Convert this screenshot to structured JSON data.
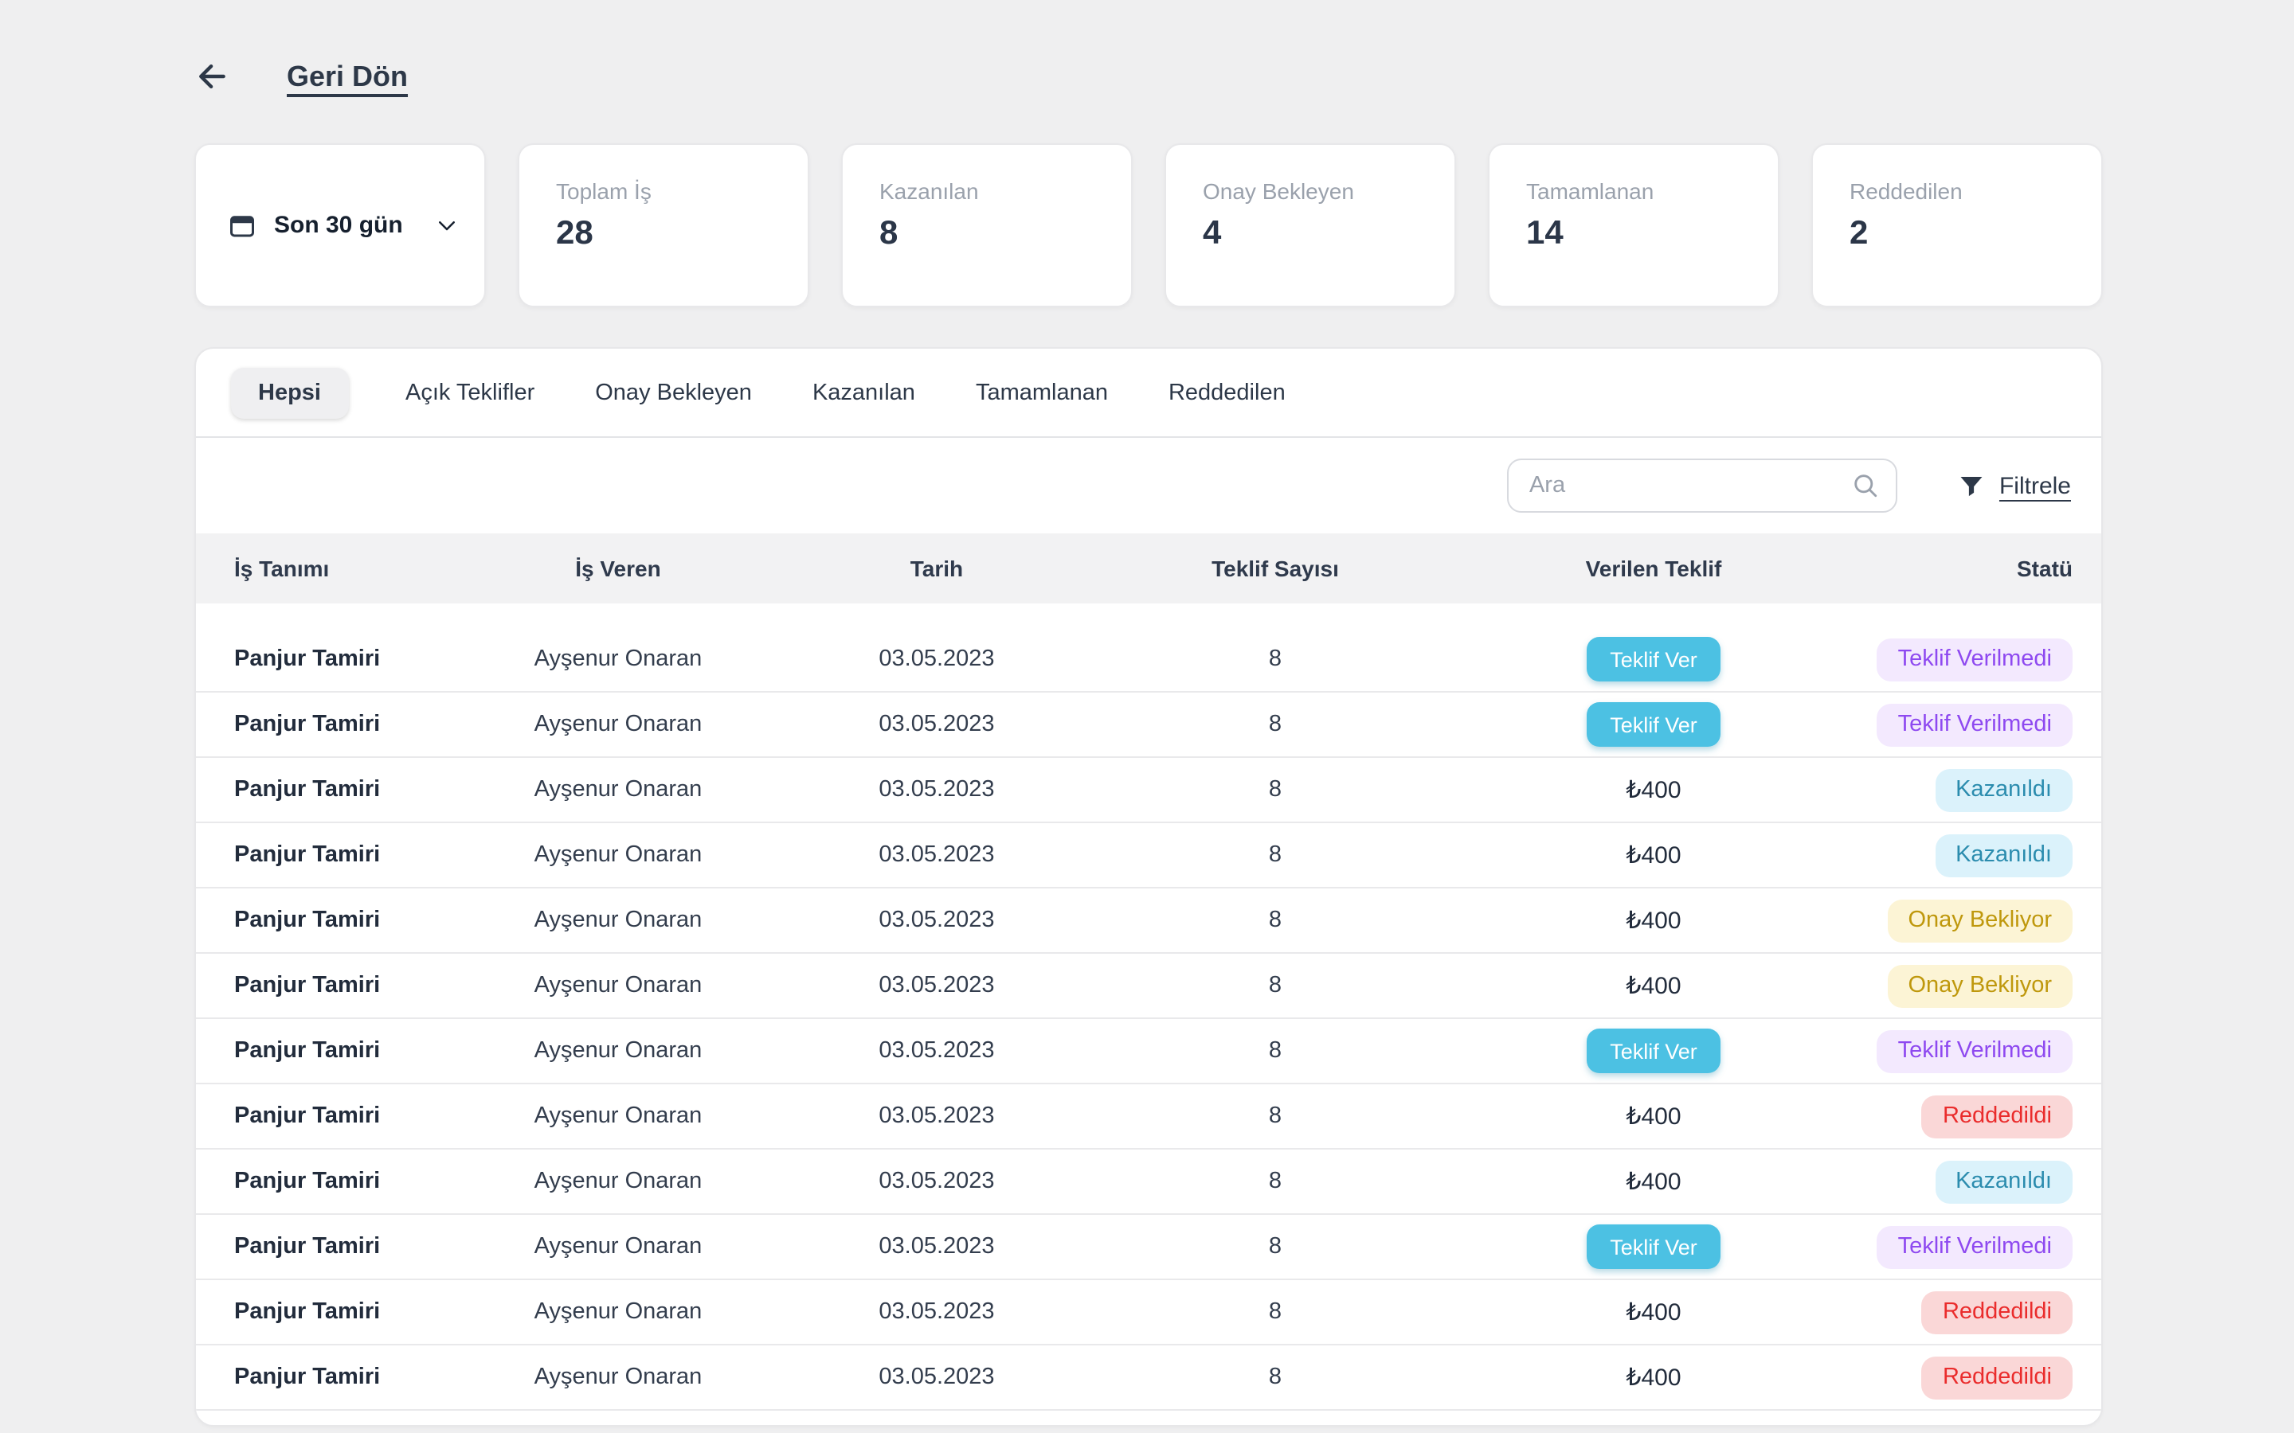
{
  "back": {
    "label": "Geri Dön"
  },
  "stats": {
    "date_filter": {
      "label": "Son 30 gün"
    },
    "cards": [
      {
        "label": "Toplam İş",
        "value": "28"
      },
      {
        "label": "Kazanılan",
        "value": "8"
      },
      {
        "label": "Onay Bekleyen",
        "value": "4"
      },
      {
        "label": "Tamamlanan",
        "value": "14"
      },
      {
        "label": "Reddedilen",
        "value": "2"
      }
    ]
  },
  "tabs": [
    {
      "label": "Hepsi",
      "active": true
    },
    {
      "label": "Açık Teklifler",
      "active": false
    },
    {
      "label": "Onay Bekleyen",
      "active": false
    },
    {
      "label": "Kazanılan",
      "active": false
    },
    {
      "label": "Tamamlanan",
      "active": false
    },
    {
      "label": "Reddedilen",
      "active": false
    }
  ],
  "toolbar": {
    "search_placeholder": "Ara",
    "filter_label": "Filtrele"
  },
  "table": {
    "columns": [
      "İş Tanımı",
      "İş Veren",
      "Tarih",
      "Teklif Sayısı",
      "Verilen Teklif",
      "Statü"
    ],
    "offer_button_label": "Teklif Ver",
    "rows": [
      {
        "job": "Panjur Tamiri",
        "employer": "Ayşenur Onaran",
        "date": "03.05.2023",
        "offer_count": "8",
        "offer_type": "button",
        "status": {
          "label": "Teklif Verilmedi",
          "variant": "purple"
        }
      },
      {
        "job": "Panjur Tamiri",
        "employer": "Ayşenur Onaran",
        "date": "03.05.2023",
        "offer_count": "8",
        "offer_type": "button",
        "status": {
          "label": "Teklif Verilmedi",
          "variant": "purple"
        }
      },
      {
        "job": "Panjur Tamiri",
        "employer": "Ayşenur Onaran",
        "date": "03.05.2023",
        "offer_count": "8",
        "offer_type": "amount",
        "offer_amount": "₺400",
        "status": {
          "label": "Kazanıldı",
          "variant": "cyan"
        }
      },
      {
        "job": "Panjur Tamiri",
        "employer": "Ayşenur Onaran",
        "date": "03.05.2023",
        "offer_count": "8",
        "offer_type": "amount",
        "offer_amount": "₺400",
        "status": {
          "label": "Kazanıldı",
          "variant": "cyan"
        }
      },
      {
        "job": "Panjur Tamiri",
        "employer": "Ayşenur Onaran",
        "date": "03.05.2023",
        "offer_count": "8",
        "offer_type": "amount",
        "offer_amount": "₺400",
        "status": {
          "label": "Onay Bekliyor",
          "variant": "yellow"
        }
      },
      {
        "job": "Panjur Tamiri",
        "employer": "Ayşenur Onaran",
        "date": "03.05.2023",
        "offer_count": "8",
        "offer_type": "amount",
        "offer_amount": "₺400",
        "status": {
          "label": "Onay Bekliyor",
          "variant": "yellow"
        }
      },
      {
        "job": "Panjur Tamiri",
        "employer": "Ayşenur Onaran",
        "date": "03.05.2023",
        "offer_count": "8",
        "offer_type": "button",
        "status": {
          "label": "Teklif Verilmedi",
          "variant": "purple"
        }
      },
      {
        "job": "Panjur Tamiri",
        "employer": "Ayşenur Onaran",
        "date": "03.05.2023",
        "offer_count": "8",
        "offer_type": "amount",
        "offer_amount": "₺400",
        "status": {
          "label": "Reddedildi",
          "variant": "red"
        }
      },
      {
        "job": "Panjur Tamiri",
        "employer": "Ayşenur Onaran",
        "date": "03.05.2023",
        "offer_count": "8",
        "offer_type": "amount",
        "offer_amount": "₺400",
        "status": {
          "label": "Kazanıldı",
          "variant": "cyan"
        }
      },
      {
        "job": "Panjur Tamiri",
        "employer": "Ayşenur Onaran",
        "date": "03.05.2023",
        "offer_count": "8",
        "offer_type": "button",
        "status": {
          "label": "Teklif Verilmedi",
          "variant": "purple"
        }
      },
      {
        "job": "Panjur Tamiri",
        "employer": "Ayşenur Onaran",
        "date": "03.05.2023",
        "offer_count": "8",
        "offer_type": "amount",
        "offer_amount": "₺400",
        "status": {
          "label": "Reddedildi",
          "variant": "red"
        }
      },
      {
        "job": "Panjur Tamiri",
        "employer": "Ayşenur Onaran",
        "date": "03.05.2023",
        "offer_count": "8",
        "offer_type": "amount",
        "offer_amount": "₺400",
        "status": {
          "label": "Reddedildi",
          "variant": "red"
        }
      }
    ]
  },
  "colors": {
    "accent_button": "#4cc1e3",
    "status_purple_text": "#8e49f0",
    "status_purple_bg": "#f3e9fe",
    "status_cyan_text": "#2b8cae",
    "status_cyan_bg": "#dbf2fb",
    "status_yellow_text": "#bf980d",
    "status_yellow_bg": "#fcf4d5",
    "status_red_text": "#ea2c2c",
    "status_red_bg": "#fad7d7",
    "dark_text": "#2d3848",
    "page_background": "#efeff0"
  }
}
